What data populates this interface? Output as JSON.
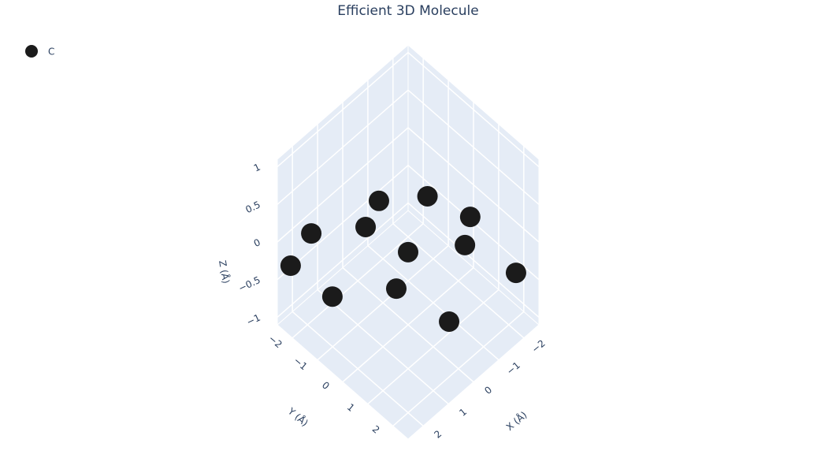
{
  "chart_data": {
    "type": "scatter3d",
    "title": "Efficient 3D Molecule",
    "series": [
      {
        "name": "C",
        "color": "#1b1b1b",
        "x": [
          0.5,
          -0.57,
          -0.95,
          1.73,
          1.36,
          2.36,
          0.23,
          -1.06,
          -2.3,
          1.89,
          0.44,
          0.14
        ],
        "y": [
          -0.66,
          0.2,
          1.52,
          -2.12,
          -0.33,
          -2.31,
          0.23,
          1.2,
          1.99,
          -1.12,
          -0.03,
          1.77
        ],
        "z": [
          0.5,
          0.5,
          0.5,
          0,
          0.5,
          -0.3,
          0,
          0,
          -0.5,
          -0.5,
          -0.5,
          -0.5
        ]
      }
    ],
    "xlabel": "X (Å)",
    "ylabel": "Y (Å)",
    "zlabel": "Z (Å)",
    "xlim": [
      -2.6,
      2.6
    ],
    "ylim": [
      -2.6,
      2.6
    ],
    "zlim": [
      -1.1,
      1.1
    ],
    "xticks": [
      {
        "value": -2,
        "label": "−2"
      },
      {
        "value": -1,
        "label": "−1"
      },
      0,
      1,
      2
    ],
    "yticks": [
      {
        "value": -2,
        "label": "−2"
      },
      {
        "value": -1,
        "label": "−1"
      },
      0,
      1,
      2
    ],
    "zticks": [
      {
        "value": -1,
        "label": "−1"
      },
      {
        "value": -0.5,
        "label": "−0.5"
      },
      0,
      0.5,
      1
    ],
    "grid": true
  }
}
